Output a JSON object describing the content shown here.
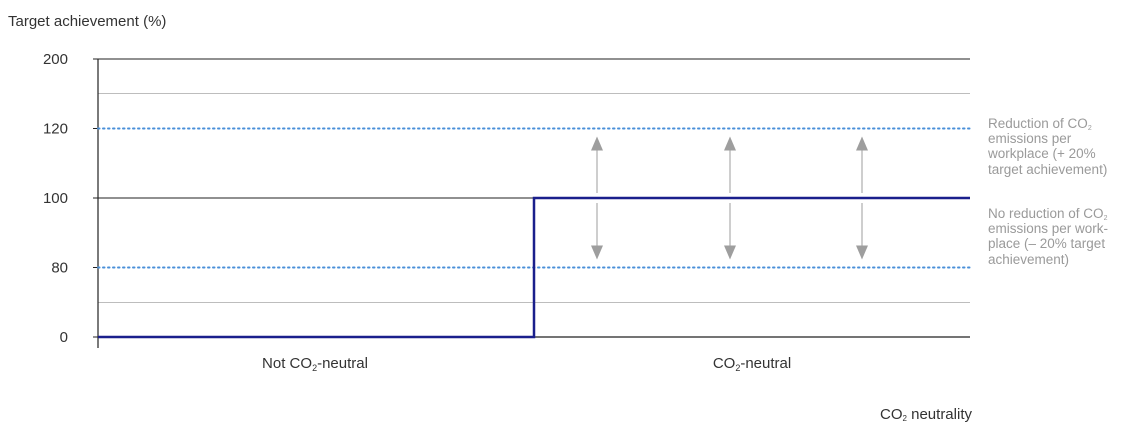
{
  "chart_data": {
    "type": "line",
    "ylabel": "Target achievement (%)",
    "xlabel_parts": [
      "CO",
      "2",
      " neutrality"
    ],
    "categories": [
      {
        "parts": [
          "Not CO",
          "2",
          "-neutral"
        ]
      },
      {
        "parts": [
          "CO",
          "2",
          "-neutral"
        ]
      }
    ],
    "y_ticks": [
      {
        "label": "200",
        "pos": 4
      },
      {
        "label": "120",
        "pos": 3
      },
      {
        "label": "100",
        "pos": 2
      },
      {
        "label": "80",
        "pos": 1
      },
      {
        "label": "0",
        "pos": 0
      }
    ],
    "step_series": {
      "color": "#1a1f8c",
      "values": [
        0,
        100
      ]
    },
    "reference_lines": [
      {
        "name": "120",
        "value": 120,
        "style": "dotted",
        "color": "#4a90d9"
      },
      {
        "name": "80",
        "value": 80,
        "style": "dotted",
        "color": "#4a90d9"
      }
    ],
    "annotations": {
      "top": {
        "line1_parts": [
          "Reduction of CO",
          "2"
        ],
        "rest": "emissions per workplace (+ 20% target achievement)"
      },
      "bottom": {
        "line1_parts": [
          "No reduction of CO",
          "2"
        ],
        "rest": "emissions per work-place (– 20% target achievement)"
      }
    },
    "arrow_count": 3,
    "colors": {
      "axis": "#222222",
      "grid": "#bdbdbd",
      "arrow": "#9e9e9e",
      "annotation_text": "#9a9a9a"
    }
  }
}
